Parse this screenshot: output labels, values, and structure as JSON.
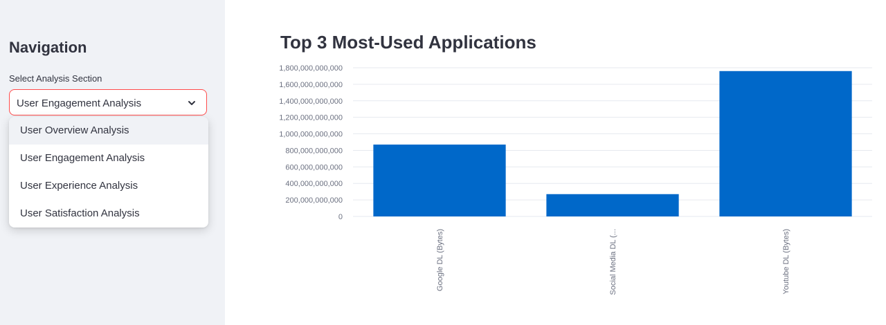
{
  "sidebar": {
    "title": "Navigation",
    "select_label": "Select Analysis Section",
    "selected_value": "User Engagement Analysis",
    "options": [
      "User Overview Analysis",
      "User Engagement Analysis",
      "User Experience Analysis",
      "User Satisfaction Analysis"
    ],
    "hovered_option_index": 0
  },
  "main": {
    "title": "Top 3 Most-Used Applications"
  },
  "colors": {
    "accent": "#ff4b4b",
    "bar": "#0068c9",
    "sidebar_bg": "#f0f2f6",
    "text": "#31333f"
  },
  "icons": {
    "select_chevron": "chevron-down-icon"
  },
  "chart_data": {
    "type": "bar",
    "categories": [
      "Google DL (Bytes)",
      "Social Media DL (...",
      "Youtube DL (Bytes)"
    ],
    "values": [
      870000000000,
      270000000000,
      1760000000000
    ],
    "ylim": [
      0,
      1800000000000
    ],
    "yticks": [
      0,
      200000000000,
      400000000000,
      600000000000,
      800000000000,
      1000000000000,
      1200000000000,
      1400000000000,
      1600000000000,
      1800000000000
    ],
    "ytick_labels": [
      "0",
      "200,000,000,000",
      "400,000,000,000",
      "600,000,000,000",
      "800,000,000,000",
      "1,000,000,000,000",
      "1,200,000,000,000",
      "1,400,000,000,000",
      "1,600,000,000,000",
      "1,800,000,000,000"
    ],
    "xlabel": "",
    "ylabel": "",
    "grid": true,
    "x_tick_rotation": "vertical"
  }
}
